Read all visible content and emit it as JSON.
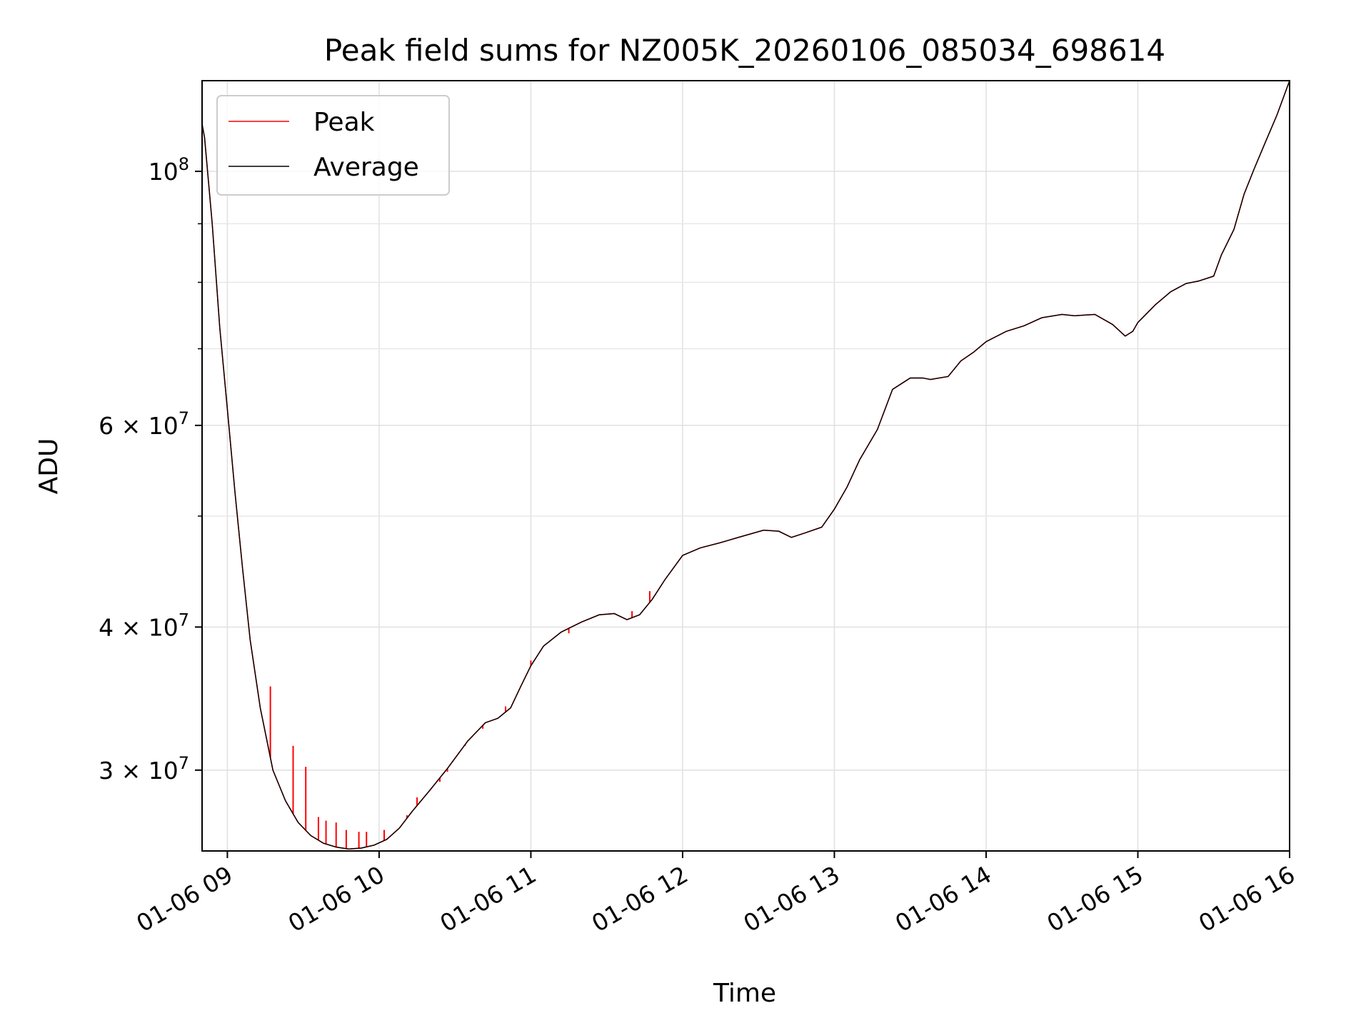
{
  "chart_data": {
    "type": "line",
    "title": "Peak field sums for NZ005K_20260106_085034_698614",
    "xlabel": "Time",
    "ylabel": "ADU",
    "x_scale": "time",
    "y_scale": "log",
    "xlim": [
      "2026-01-06 08:50",
      "2026-01-06 16:00"
    ],
    "ylim": [
      25500000,
      120000000
    ],
    "grid": true,
    "legend_placement": "top-left",
    "x_ticks": [
      {
        "value": "2026-01-06 09:00",
        "label": "01-06 09"
      },
      {
        "value": "2026-01-06 10:00",
        "label": "01-06 10"
      },
      {
        "value": "2026-01-06 11:00",
        "label": "01-06 11"
      },
      {
        "value": "2026-01-06 12:00",
        "label": "01-06 12"
      },
      {
        "value": "2026-01-06 13:00",
        "label": "01-06 13"
      },
      {
        "value": "2026-01-06 14:00",
        "label": "01-06 14"
      },
      {
        "value": "2026-01-06 15:00",
        "label": "01-06 15"
      },
      {
        "value": "2026-01-06 16:00",
        "label": "01-06 16"
      }
    ],
    "y_major_ticks": [
      {
        "value": 30000000,
        "mantissa": "3",
        "exponent": "7"
      },
      {
        "value": 40000000,
        "mantissa": "4",
        "exponent": "7"
      },
      {
        "value": 60000000,
        "mantissa": "6",
        "exponent": "7"
      },
      {
        "value": 100000000,
        "mantissa": "",
        "exponent": "8"
      }
    ],
    "y_minor_ticks": [
      50000000,
      70000000,
      80000000,
      90000000
    ],
    "series": [
      {
        "name": "Peak",
        "color": "#ff0000",
        "spikes": [
          {
            "x": "2026-01-06 09:17",
            "top": 35500000
          },
          {
            "x": "2026-01-06 09:26",
            "top": 31500000
          },
          {
            "x": "2026-01-06 09:31",
            "top": 30200000
          },
          {
            "x": "2026-01-06 09:36",
            "top": 27300000
          },
          {
            "x": "2026-01-06 09:39",
            "top": 27100000
          },
          {
            "x": "2026-01-06 09:43",
            "top": 27000000
          },
          {
            "x": "2026-01-06 09:47",
            "top": 26600000
          },
          {
            "x": "2026-01-06 09:52",
            "top": 26500000
          },
          {
            "x": "2026-01-06 09:55",
            "top": 26500000
          },
          {
            "x": "2026-01-06 10:02",
            "top": 26600000
          },
          {
            "x": "2026-01-06 10:11",
            "top": 27400000
          },
          {
            "x": "2026-01-06 10:15",
            "top": 28400000
          },
          {
            "x": "2026-01-06 10:20",
            "top": 28800000
          },
          {
            "x": "2026-01-06 10:24",
            "top": 29300000
          },
          {
            "x": "2026-01-06 10:27",
            "top": 29900000
          },
          {
            "x": "2026-01-06 10:34",
            "top": 31500000
          },
          {
            "x": "2026-01-06 10:41",
            "top": 32600000
          },
          {
            "x": "2026-01-06 10:45",
            "top": 33200000
          },
          {
            "x": "2026-01-06 10:50",
            "top": 34100000
          },
          {
            "x": "2026-01-06 11:00",
            "top": 37400000
          },
          {
            "x": "2026-01-06 11:15",
            "top": 39500000
          },
          {
            "x": "2026-01-06 11:29",
            "top": 41000000
          },
          {
            "x": "2026-01-06 11:40",
            "top": 41300000
          },
          {
            "x": "2026-01-06 11:47",
            "top": 43000000
          }
        ]
      },
      {
        "name": "Average",
        "color": "#000000",
        "x": [
          "2026-01-06 08:50",
          "2026-01-06 08:51",
          "2026-01-06 08:54",
          "2026-01-06 08:57",
          "2026-01-06 09:00",
          "2026-01-06 09:03",
          "2026-01-06 09:06",
          "2026-01-06 09:09",
          "2026-01-06 09:13",
          "2026-01-06 09:18",
          "2026-01-06 09:23",
          "2026-01-06 09:28",
          "2026-01-06 09:33",
          "2026-01-06 09:38",
          "2026-01-06 09:43",
          "2026-01-06 09:48",
          "2026-01-06 09:53",
          "2026-01-06 09:58",
          "2026-01-06 10:03",
          "2026-01-06 10:08",
          "2026-01-06 10:13",
          "2026-01-06 10:20",
          "2026-01-06 10:27",
          "2026-01-06 10:35",
          "2026-01-06 10:42",
          "2026-01-06 10:47",
          "2026-01-06 10:52",
          "2026-01-06 10:56",
          "2026-01-06 11:00",
          "2026-01-06 11:05",
          "2026-01-06 11:12",
          "2026-01-06 11:20",
          "2026-01-06 11:27",
          "2026-01-06 11:33",
          "2026-01-06 11:38",
          "2026-01-06 11:43",
          "2026-01-06 11:48",
          "2026-01-06 11:53",
          "2026-01-06 12:00",
          "2026-01-06 12:07",
          "2026-01-06 12:15",
          "2026-01-06 12:22",
          "2026-01-06 12:32",
          "2026-01-06 12:38",
          "2026-01-06 12:43",
          "2026-01-06 12:48",
          "2026-01-06 12:55",
          "2026-01-06 13:00",
          "2026-01-06 13:05",
          "2026-01-06 13:10",
          "2026-01-06 13:17",
          "2026-01-06 13:23",
          "2026-01-06 13:30",
          "2026-01-06 13:35",
          "2026-01-06 13:38",
          "2026-01-06 13:45",
          "2026-01-06 13:50",
          "2026-01-06 13:55",
          "2026-01-06 14:00",
          "2026-01-06 14:08",
          "2026-01-06 14:15",
          "2026-01-06 14:22",
          "2026-01-06 14:30",
          "2026-01-06 14:35",
          "2026-01-06 14:43",
          "2026-01-06 14:50",
          "2026-01-06 14:55",
          "2026-01-06 14:58",
          "2026-01-06 15:00",
          "2026-01-06 15:07",
          "2026-01-06 15:13",
          "2026-01-06 15:19",
          "2026-01-06 15:24",
          "2026-01-06 15:30",
          "2026-01-06 15:33",
          "2026-01-06 15:38",
          "2026-01-06 15:42",
          "2026-01-06 15:46",
          "2026-01-06 15:50",
          "2026-01-06 15:55",
          "2026-01-06 16:00"
        ],
        "values": [
          110000000,
          107000000,
          90000000,
          73000000,
          62000000,
          52500000,
          45000000,
          39000000,
          34000000,
          30000000,
          28200000,
          27000000,
          26300000,
          25900000,
          25700000,
          25600000,
          25650000,
          25800000,
          26100000,
          26700000,
          27600000,
          28800000,
          30100000,
          31800000,
          33000000,
          33300000,
          34000000,
          35500000,
          37000000,
          38500000,
          39600000,
          40400000,
          41000000,
          41100000,
          40600000,
          41000000,
          42300000,
          44000000,
          46200000,
          46900000,
          47400000,
          47900000,
          48600000,
          48500000,
          47900000,
          48300000,
          48900000,
          50700000,
          53000000,
          56000000,
          59500000,
          64500000,
          66000000,
          66000000,
          65800000,
          66200000,
          68300000,
          69500000,
          71000000,
          72500000,
          73300000,
          74500000,
          75000000,
          74800000,
          75000000,
          73500000,
          71800000,
          72500000,
          73800000,
          76500000,
          78500000,
          79800000,
          80200000,
          81000000,
          84500000,
          89000000,
          95500000,
          100500000,
          105500000,
          112000000,
          120000000
        ]
      }
    ]
  }
}
